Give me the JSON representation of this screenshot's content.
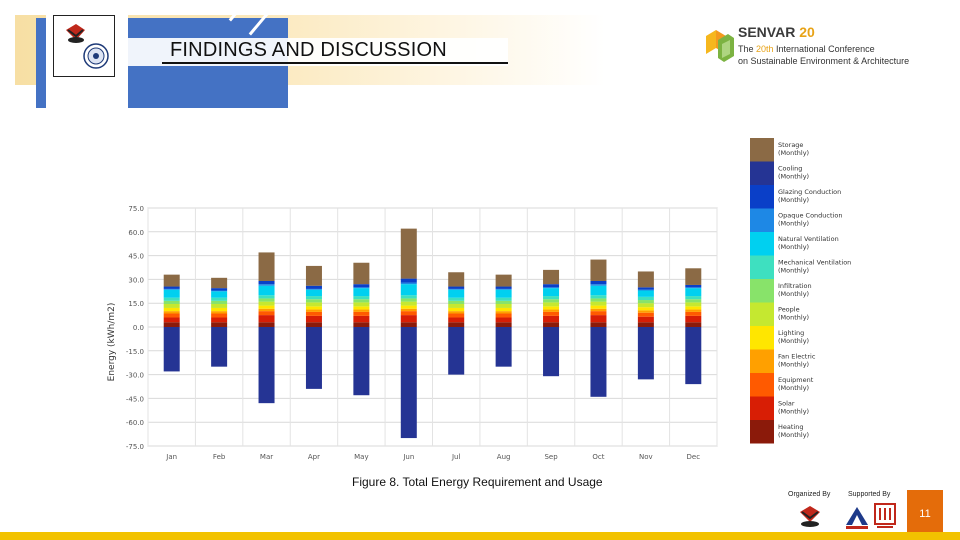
{
  "header": {
    "title": "FINDINGS AND DISCUSSION",
    "accent_color": "#4472c4",
    "highlight_color": "#f7dfa4"
  },
  "conference": {
    "name": "SENVAR",
    "number": "20",
    "line1_prefix": "The ",
    "line1_highlight": "20th",
    "line1_suffix": " International Conference",
    "line2": "on Sustainable Environment & Architecture",
    "brand_color": "#e8a317"
  },
  "caption": {
    "label": "Figure 8",
    "text": ". Total Energy Requirement and Usage"
  },
  "footer": {
    "organized_by": "Organized By",
    "supported_by": "Supported By",
    "page_number": "11",
    "page_box_color": "#e46c0a",
    "bar_color": "#f2c200"
  },
  "chart_data": {
    "type": "bar",
    "stacked": true,
    "title": "",
    "xlabel": "",
    "ylabel": "Energy (kWh/m2)",
    "ylim": [
      -75,
      75
    ],
    "yticks": [
      "75.0",
      "60.0",
      "45.0",
      "30.0",
      "15.0",
      "0.0",
      "-15.0",
      "-30.0",
      "-45.0",
      "-60.0",
      "-75.0"
    ],
    "grid": true,
    "legend_position": "right",
    "categories": [
      "Jan",
      "Feb",
      "Mar",
      "Apr",
      "May",
      "Jun",
      "Jul",
      "Aug",
      "Sep",
      "Oct",
      "Nov",
      "Dec"
    ],
    "series": [
      {
        "name": "Storage",
        "sub": "(Monthly)",
        "color": "#8b6a45",
        "values": [
          7.5,
          6.5,
          18,
          12.5,
          13.5,
          31.5,
          9,
          7.5,
          9,
          13.5,
          10,
          10.5
        ]
      },
      {
        "name": "Cooling",
        "sub": "(Monthly)",
        "color": "#253494",
        "values": [
          -28,
          -25,
          -48,
          -39,
          -43,
          -70,
          -30,
          -25,
          -31,
          -44,
          -33,
          -36
        ]
      },
      {
        "name": "Glazing Conduction",
        "sub": "(Monthly)",
        "color": "#0a3fc8",
        "values": [
          1.5,
          1.5,
          2,
          2,
          2,
          2.5,
          1.5,
          1.5,
          2,
          2,
          1.5,
          1.5
        ]
      },
      {
        "name": "Opaque Conduction",
        "sub": "(Monthly)",
        "color": "#1e88e5",
        "values": [
          0.5,
          0.5,
          1,
          0.5,
          0.5,
          1,
          0.5,
          0.5,
          0.5,
          1,
          0.5,
          0.5
        ]
      },
      {
        "name": "Natural Ventilation",
        "sub": "(Monthly)",
        "color": "#00d0f0",
        "values": [
          5,
          4,
          6,
          4,
          5,
          7,
          5,
          5,
          5,
          6,
          4,
          5
        ]
      },
      {
        "name": "Mechanical Ventilation",
        "sub": "(Monthly)",
        "color": "#3ee0c0",
        "values": [
          2,
          2,
          2,
          2,
          2,
          2,
          2,
          2,
          2,
          2,
          2,
          2
        ]
      },
      {
        "name": "Infiltration",
        "sub": "(Monthly)",
        "color": "#88e36a",
        "values": [
          2,
          2,
          2,
          2,
          2,
          2,
          2,
          2,
          2,
          2,
          2,
          2
        ]
      },
      {
        "name": "People",
        "sub": "(Monthly)",
        "color": "#c5e830",
        "values": [
          2.5,
          2.5,
          2.5,
          2.5,
          2.5,
          2.5,
          2.5,
          2.5,
          2.5,
          2.5,
          2.5,
          2.5
        ]
      },
      {
        "name": "Lighting",
        "sub": "(Monthly)",
        "color": "#ffe600",
        "values": [
          2,
          2,
          2,
          2,
          2,
          2,
          2,
          2,
          2,
          2,
          2,
          2
        ]
      },
      {
        "name": "Fan Electric",
        "sub": "(Monthly)",
        "color": "#ffa000",
        "values": [
          1.5,
          1.5,
          1.5,
          1.5,
          1.5,
          1.5,
          1.5,
          1.5,
          1.5,
          1.5,
          1.5,
          1.5
        ]
      },
      {
        "name": "Equipment",
        "sub": "(Monthly)",
        "color": "#ff5a00",
        "values": [
          2.5,
          2.5,
          2.5,
          2.5,
          2.5,
          2.5,
          2.5,
          2.5,
          2.5,
          2.5,
          2.5,
          2.5
        ]
      },
      {
        "name": "Solar",
        "sub": "(Monthly)",
        "color": "#d81e05",
        "values": [
          3,
          3,
          4.5,
          4,
          4,
          4.5,
          3,
          3,
          4,
          4.5,
          3.5,
          4
        ]
      },
      {
        "name": "Heating",
        "sub": "(Monthly)",
        "color": "#8b1a0a",
        "values": [
          3,
          3,
          3,
          3,
          3,
          3,
          3,
          3,
          3,
          3,
          3,
          3
        ]
      }
    ]
  }
}
